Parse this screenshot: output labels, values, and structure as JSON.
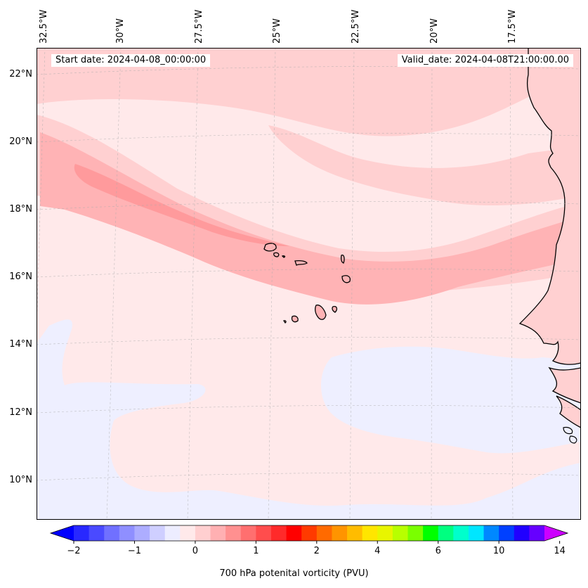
{
  "header": {
    "start_date": "Start date: 2024-04-08_00:00:00",
    "valid_date": "Valid_date: 2024-04-08T21:00:00.00"
  },
  "map": {
    "lon_labels": [
      "32.5°W",
      "30°W",
      "27.5°W",
      "25°W",
      "22.5°W",
      "20°W",
      "17.5°W"
    ],
    "lat_labels": [
      "22°N",
      "20°N",
      "18°N",
      "16°N",
      "14°N",
      "12°N",
      "10°N"
    ],
    "field": "700 hPa potential vorticity",
    "coastline_color": "#000000"
  },
  "colorbar": {
    "label": "700 hPa potenital vorticity (PVU)",
    "tick_labels": [
      "−2",
      "−1",
      "0",
      "1",
      "2",
      "4",
      "6",
      "10",
      "14"
    ],
    "min_color": "#0000ff",
    "max_color": "#cc00ff",
    "colors": [
      "#0000ff",
      "#2828ff",
      "#4a4aff",
      "#7070ff",
      "#8f8fff",
      "#adadff",
      "#cfcfff",
      "#ededff",
      "#ffe9ea",
      "#ffcfd0",
      "#ffb0b2",
      "#ff9090",
      "#ff6f6f",
      "#ff4d4d",
      "#ff2a2a",
      "#ff0000",
      "#ff3a00",
      "#ff6a00",
      "#ff9400",
      "#ffbc00",
      "#ffe600",
      "#e8f500",
      "#b8ff00",
      "#7aff00",
      "#00ff00",
      "#00ff80",
      "#00ffcc",
      "#00e6ff",
      "#0088ff",
      "#0040ff",
      "#2000ff",
      "#6600ff",
      "#9900ff"
    ]
  }
}
